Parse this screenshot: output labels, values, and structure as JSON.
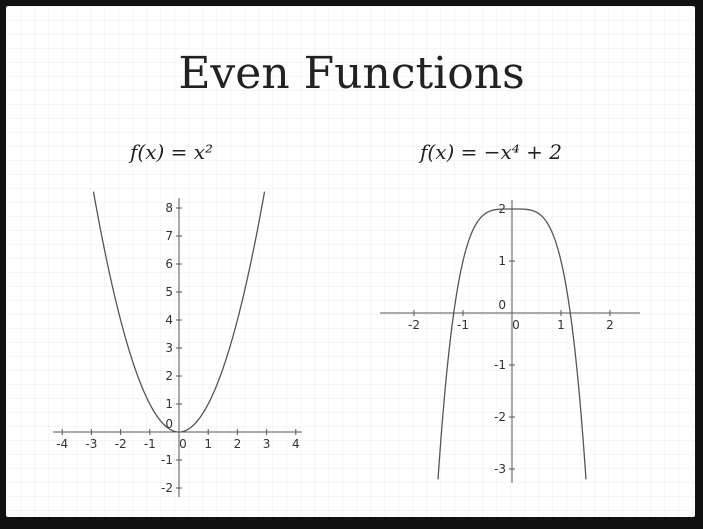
{
  "slide": {
    "title": "Even Functions"
  },
  "chart_data": [
    {
      "type": "line",
      "title": "f(x) = x²",
      "function": "x^2",
      "xlim": [
        -4,
        4
      ],
      "ylim": [
        -2,
        8
      ],
      "x_ticks": [
        "-4",
        "-3",
        "-2",
        "-1",
        "0",
        "1",
        "2",
        "3",
        "4"
      ],
      "y_ticks": [
        "8",
        "7",
        "6",
        "5",
        "4",
        "3",
        "2",
        "1",
        "0",
        "-1",
        "-2"
      ],
      "x": [
        -2.9,
        -2.5,
        -2,
        -1.5,
        -1,
        -0.5,
        0,
        0.5,
        1,
        1.5,
        2,
        2.5,
        2.9
      ],
      "y": [
        8.41,
        6.25,
        4,
        2.25,
        1,
        0.25,
        0,
        0.25,
        1,
        2.25,
        4,
        6.25,
        8.41
      ],
      "grid": false
    },
    {
      "type": "line",
      "title": "f(x) = −x⁴ + 2",
      "function": "-x^4 + 2",
      "xlim": [
        -2,
        2
      ],
      "ylim": [
        -3,
        2
      ],
      "x_ticks": [
        "-2",
        "-1",
        "0",
        "1",
        "2"
      ],
      "y_ticks": [
        "2",
        "1",
        "0",
        "-1",
        "-2",
        "-3"
      ],
      "x": [
        -1.5,
        -1.25,
        -1,
        -0.5,
        0,
        0.5,
        1,
        1.25,
        1.5
      ],
      "y": [
        -3.06,
        -0.44,
        1,
        1.94,
        2,
        1.94,
        1,
        -0.44,
        -3.06
      ],
      "grid": false
    }
  ]
}
